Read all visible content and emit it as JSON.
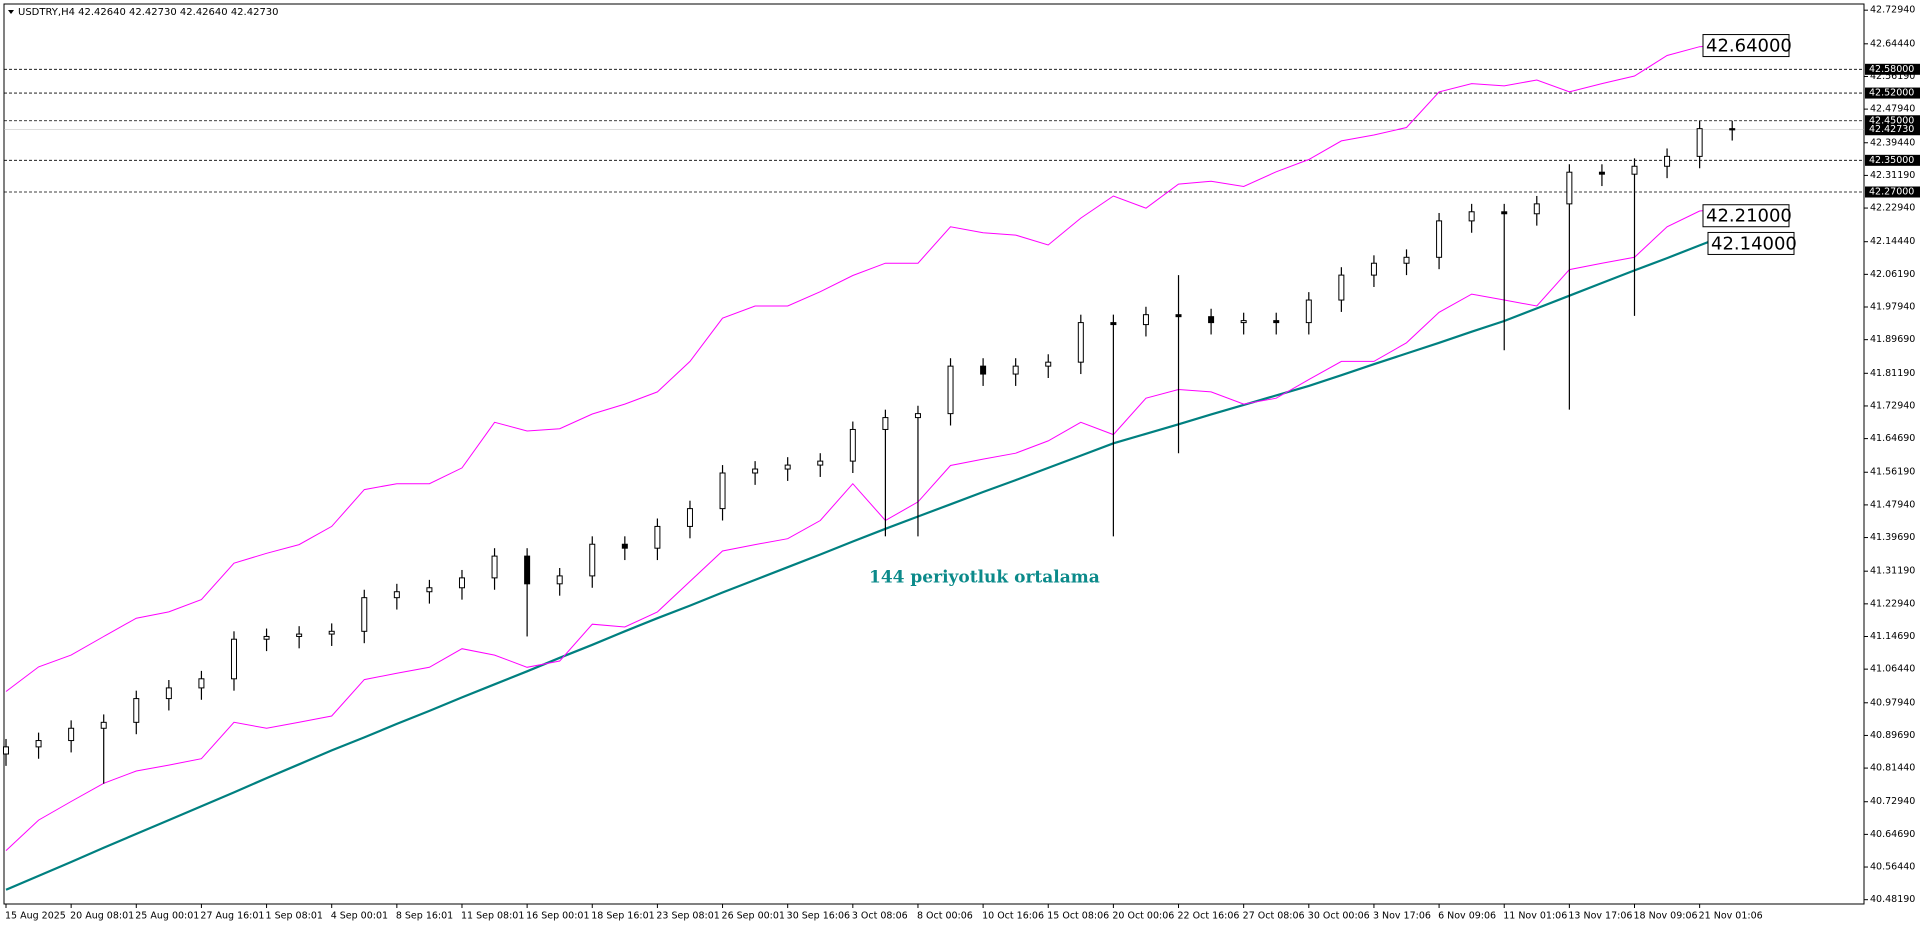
{
  "chart_data": {
    "type": "candlestick",
    "title": "USDTRY,H4  42.42640 42.42730 42.42640 42.42730",
    "annotation": "144 periyotluk ortalama",
    "candle_color": "#000000",
    "categories": [
      "15 Aug 2025",
      null,
      "20 Aug 08:01",
      null,
      "25 Aug 00:01",
      null,
      "27 Aug 16:01",
      null,
      "1 Sep 08:01",
      null,
      "4 Sep 00:01",
      null,
      "8 Sep 16:01",
      null,
      "11 Sep 08:01",
      null,
      "16 Sep 00:01",
      null,
      "18 Sep 16:01",
      null,
      "23 Sep 08:01",
      null,
      "26 Sep 00:01",
      null,
      "30 Sep 16:06",
      null,
      "3 Oct 08:06",
      null,
      "8 Oct 00:06",
      null,
      "10 Oct 16:06",
      null,
      "15 Oct 08:06",
      null,
      "20 Oct 00:06",
      null,
      "22 Oct 16:06",
      null,
      "27 Oct 08:06",
      null,
      "30 Oct 00:06",
      null,
      "3 Nov 17:06",
      null,
      "6 Nov 09:06",
      null,
      "11 Nov 01:06",
      null,
      "13 Nov 17:06",
      null,
      "18 Nov 09:06",
      null,
      "21 Nov 01:06",
      null
    ],
    "open": [
      40.85,
      40.868,
      40.884,
      40.915,
      40.93,
      40.99,
      41.017,
      41.04,
      41.14,
      41.147,
      41.153,
      41.16,
      41.245,
      41.26,
      41.27,
      41.295,
      41.35,
      41.28,
      41.3,
      41.38,
      41.37,
      41.425,
      41.47,
      41.56,
      41.57,
      41.58,
      41.59,
      41.67,
      41.7,
      41.71,
      41.83,
      41.81,
      41.83,
      41.84,
      41.94,
      41.935,
      41.96,
      41.955,
      41.94,
      41.945,
      41.94,
      41.997,
      42.06,
      42.09,
      42.105,
      42.197,
      42.22,
      42.215,
      42.24,
      42.32,
      42.315,
      42.335,
      42.36,
      42.43
    ],
    "high": [
      40.888,
      40.904,
      40.935,
      40.95,
      41.01,
      41.037,
      41.06,
      41.16,
      41.167,
      41.173,
      41.18,
      41.265,
      41.28,
      41.29,
      41.315,
      41.37,
      41.37,
      41.32,
      41.4,
      41.4,
      41.445,
      41.49,
      41.58,
      41.59,
      41.6,
      41.61,
      41.69,
      41.72,
      41.73,
      41.85,
      41.85,
      41.85,
      41.86,
      41.96,
      41.96,
      41.98,
      42.06,
      41.975,
      41.965,
      41.965,
      42.017,
      42.08,
      42.11,
      42.125,
      42.217,
      42.24,
      42.24,
      42.26,
      42.34,
      42.34,
      42.355,
      42.38,
      42.45,
      42.45
    ],
    "low": [
      40.82,
      40.838,
      40.854,
      40.775,
      40.9,
      40.96,
      40.987,
      41.01,
      41.11,
      41.117,
      41.123,
      41.13,
      41.215,
      41.23,
      41.24,
      41.265,
      41.147,
      41.25,
      41.27,
      41.34,
      41.34,
      41.395,
      41.44,
      41.53,
      41.54,
      41.55,
      41.56,
      41.4,
      41.4,
      41.68,
      41.78,
      41.78,
      41.8,
      41.81,
      41.4,
      41.905,
      41.61,
      41.91,
      41.91,
      41.91,
      41.91,
      41.967,
      42.03,
      42.06,
      42.075,
      42.167,
      41.87,
      42.185,
      41.72,
      42.285,
      41.957,
      42.305,
      42.33,
      42.4
    ],
    "close": [
      40.868,
      40.884,
      40.915,
      40.93,
      40.99,
      41.017,
      41.04,
      41.14,
      41.147,
      41.153,
      41.16,
      41.245,
      41.26,
      41.27,
      41.295,
      41.35,
      41.28,
      41.3,
      41.38,
      41.37,
      41.425,
      41.47,
      41.56,
      41.57,
      41.58,
      41.59,
      41.67,
      41.7,
      41.71,
      41.83,
      41.81,
      41.83,
      41.84,
      41.94,
      41.935,
      41.96,
      41.955,
      41.94,
      41.945,
      41.94,
      41.997,
      42.06,
      42.09,
      42.105,
      42.197,
      42.22,
      42.215,
      42.24,
      42.32,
      42.315,
      42.335,
      42.36,
      42.43,
      42.427
    ],
    "overlays": [
      {
        "color": "#008080",
        "width": 2.2,
        "values": [
          40.507,
          40.542,
          40.577,
          40.613,
          40.648,
          40.683,
          40.718,
          40.753,
          40.789,
          40.824,
          40.859,
          40.892,
          40.926,
          40.959,
          40.993,
          41.026,
          41.059,
          41.093,
          41.126,
          41.16,
          41.193,
          41.225,
          41.258,
          41.29,
          41.322,
          41.354,
          41.387,
          41.419,
          41.45,
          41.481,
          41.512,
          41.542,
          41.573,
          41.604,
          41.635,
          41.659,
          41.683,
          41.708,
          41.732,
          41.756,
          41.78,
          41.807,
          41.835,
          41.862,
          41.889,
          41.917,
          41.944,
          41.976,
          42.008,
          42.04,
          42.072,
          42.103,
          42.135,
          42.167
        ]
      },
      {
        "color": "#ff00ff",
        "width": 1,
        "values": [
          41.008,
          41.07,
          41.1,
          41.147,
          41.193,
          41.209,
          41.24,
          41.332,
          41.357,
          41.379,
          41.425,
          41.518,
          41.533,
          41.533,
          41.573,
          41.688,
          41.666,
          41.672,
          41.709,
          41.734,
          41.765,
          41.842,
          41.951,
          41.982,
          41.982,
          42.018,
          42.059,
          42.09,
          42.09,
          42.182,
          42.167,
          42.161,
          42.136,
          42.204,
          42.26,
          42.229,
          42.29,
          42.297,
          42.284,
          42.321,
          42.352,
          42.399,
          42.414,
          42.433,
          42.523,
          42.544,
          42.538,
          42.553,
          42.523,
          42.544,
          42.563,
          42.615,
          42.637,
          42.643
        ]
      },
      {
        "color": "#ff00ff",
        "width": 1,
        "values": [
          40.606,
          40.683,
          40.73,
          40.776,
          40.807,
          40.822,
          40.838,
          40.93,
          40.915,
          40.93,
          40.946,
          41.038,
          41.054,
          41.069,
          41.116,
          41.1,
          41.069,
          41.085,
          41.178,
          41.171,
          41.209,
          41.286,
          41.363,
          41.379,
          41.394,
          41.44,
          41.533,
          41.44,
          41.487,
          41.579,
          41.595,
          41.61,
          41.641,
          41.688,
          41.657,
          41.749,
          41.771,
          41.765,
          41.734,
          41.749,
          41.796,
          41.842,
          41.842,
          41.889,
          41.966,
          42.012,
          41.997,
          41.982,
          42.074,
          42.09,
          42.105,
          42.182,
          42.222,
          42.229
        ]
      }
    ],
    "levels": [
      {
        "value": 42.58,
        "label": "42.58000"
      },
      {
        "value": 42.52,
        "label": "42.52000"
      },
      {
        "value": 42.45,
        "label": "42.45000"
      },
      {
        "value": 42.35,
        "label": "42.35000"
      },
      {
        "value": 42.27,
        "label": "42.27000"
      }
    ],
    "current_price": {
      "value": 42.4273,
      "label": "42.42730"
    },
    "price_boxes": [
      {
        "value": 42.64,
        "label": "42.64000"
      },
      {
        "value": 42.21,
        "label": "42.21000"
      },
      {
        "value": 42.14,
        "label": "42.14000"
      }
    ],
    "ylim": [
      40.471,
      42.745
    ],
    "yticks": [
      {
        "value": 42.7294,
        "label": "42.72940"
      },
      {
        "value": 42.6444,
        "label": "42.64440"
      },
      {
        "value": 42.5619,
        "label": "42.56190"
      },
      {
        "value": 42.4794,
        "label": "42.47940"
      },
      {
        "value": 42.3944,
        "label": "42.39440"
      },
      {
        "value": 42.3119,
        "label": "42.31190"
      },
      {
        "value": 42.2294,
        "label": "42.22940"
      },
      {
        "value": 42.1444,
        "label": "42.14440"
      },
      {
        "value": 42.0619,
        "label": "42.06190"
      },
      {
        "value": 41.9794,
        "label": "41.97940"
      },
      {
        "value": 41.8969,
        "label": "41.89690"
      },
      {
        "value": 41.8119,
        "label": "41.81190"
      },
      {
        "value": 41.7294,
        "label": "41.72940"
      },
      {
        "value": 41.6469,
        "label": "41.64690"
      },
      {
        "value": 41.5619,
        "label": "41.56190"
      },
      {
        "value": 41.4794,
        "label": "41.47940"
      },
      {
        "value": 41.3969,
        "label": "41.39690"
      },
      {
        "value": 41.3119,
        "label": "41.31190"
      },
      {
        "value": 41.2294,
        "label": "41.22940"
      },
      {
        "value": 41.1469,
        "label": "41.14690"
      },
      {
        "value": 41.0644,
        "label": "41.06440"
      },
      {
        "value": 40.9794,
        "label": "40.97940"
      },
      {
        "value": 40.8969,
        "label": "40.89690"
      },
      {
        "value": 40.8144,
        "label": "40.81440"
      },
      {
        "value": 40.7294,
        "label": "40.72940"
      },
      {
        "value": 40.6469,
        "label": "40.64690"
      },
      {
        "value": 40.5644,
        "label": "40.56440"
      },
      {
        "value": 40.4819,
        "label": "40.48190"
      }
    ],
    "grid": false
  }
}
